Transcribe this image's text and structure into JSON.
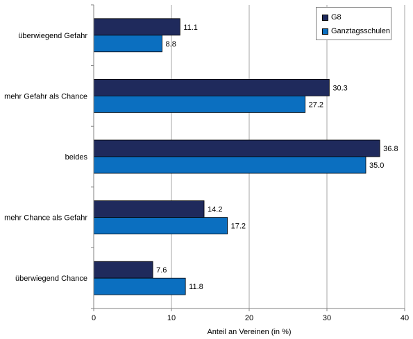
{
  "chart_data": {
    "type": "bar",
    "orientation": "horizontal",
    "categories": [
      "überwiegend Gefahr",
      "mehr Gefahr als Chance",
      "beides",
      "mehr Chance als Gefahr",
      "überwiegend Chance"
    ],
    "series": [
      {
        "name": "G8",
        "values": [
          11.1,
          30.3,
          36.8,
          14.2,
          7.6
        ],
        "color": "#1f2a5c"
      },
      {
        "name": "Ganztagsschulen",
        "values": [
          8.8,
          27.2,
          35.0,
          17.2,
          11.8
        ],
        "color": "#0b6fc0"
      }
    ],
    "value_labels": [
      [
        "11.1",
        "30.3",
        "36.8",
        "14.2",
        "7.6"
      ],
      [
        "8.8",
        "27.2",
        "35.0",
        "17.2",
        "11.8"
      ]
    ],
    "xlabel": "Anteil an Vereinen (in %)",
    "xlim": [
      0,
      40
    ],
    "xticks": [
      "0",
      "10",
      "20",
      "30",
      "40"
    ],
    "grid": "vertical",
    "legend_position": "top-right"
  }
}
